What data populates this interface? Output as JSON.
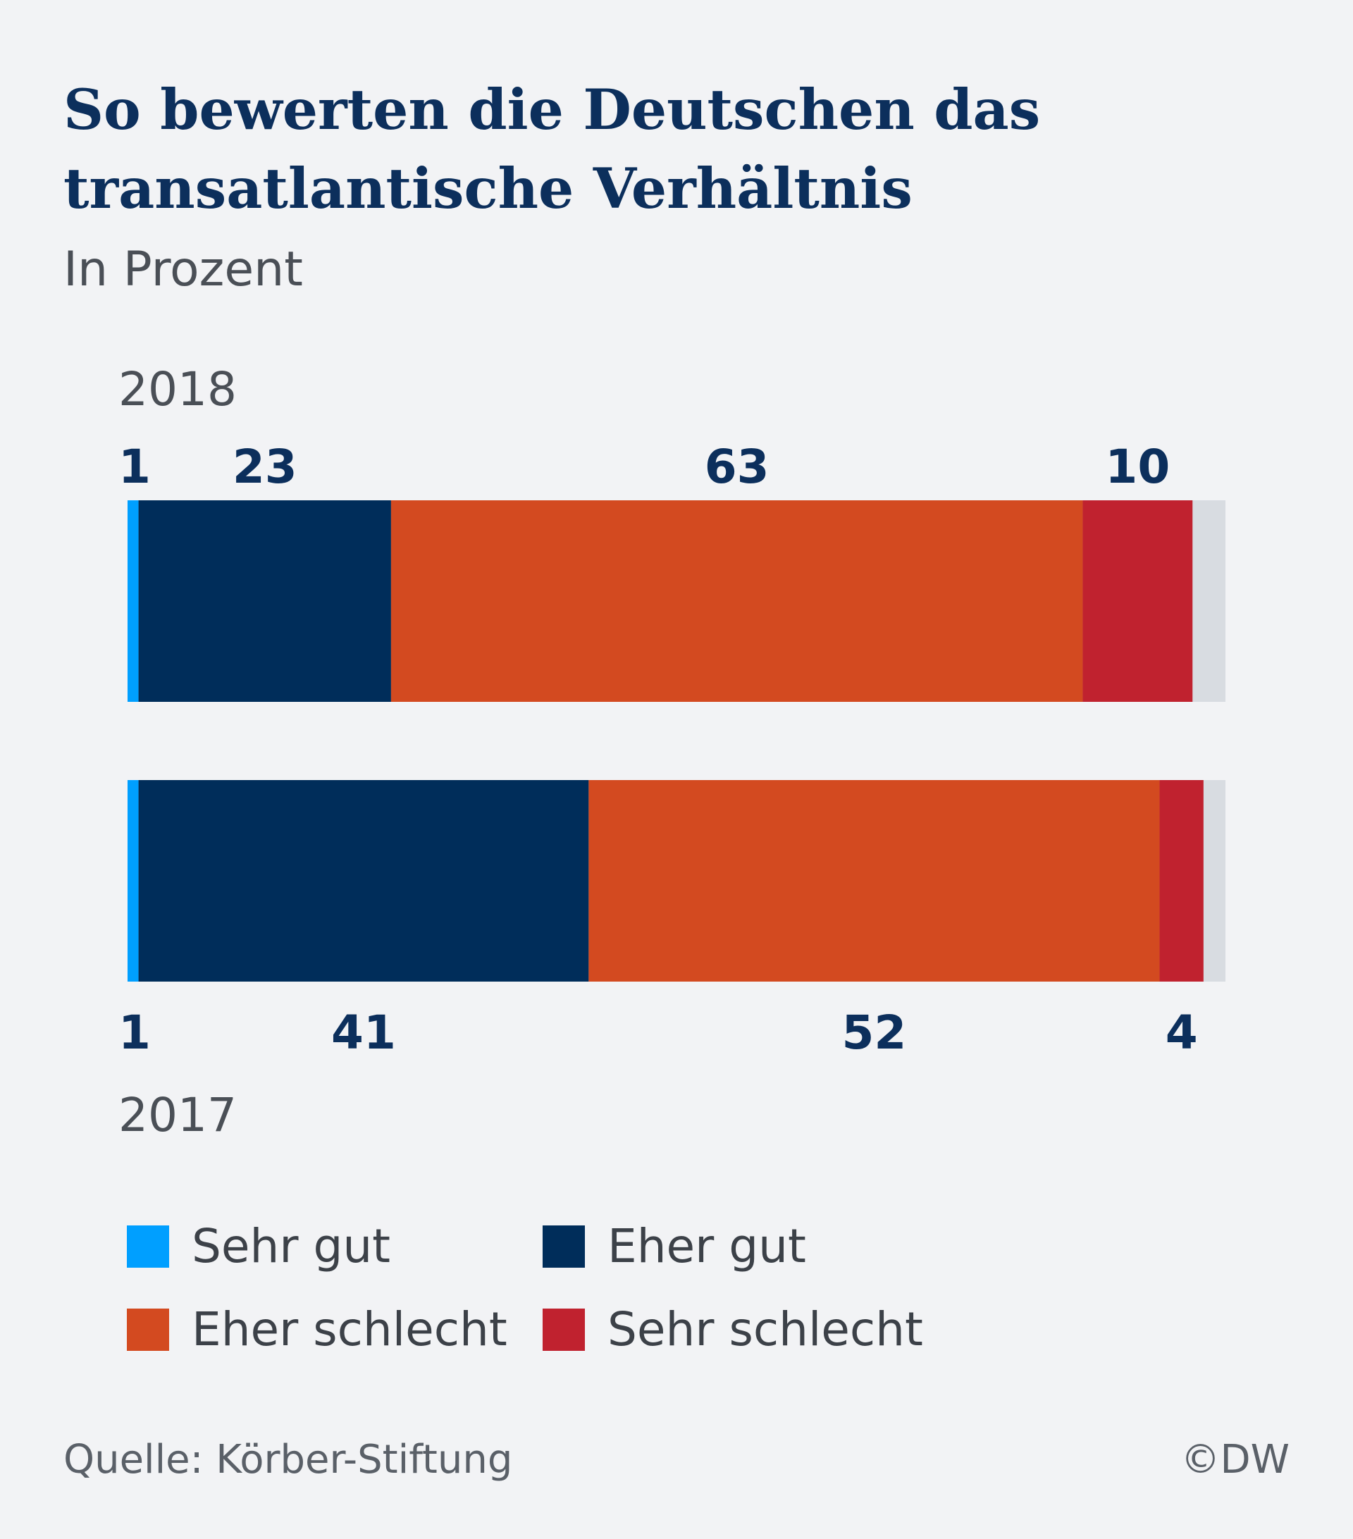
{
  "title": "So bewerten die Deutschen das transatlantische Verhältnis",
  "subtitle": "In Prozent",
  "source": "Quelle: Körber-Stiftung",
  "credit": "©DW",
  "colors": {
    "sehr_gut": "#009fff",
    "eher_gut": "#002d5a",
    "eher_schlecht": "#d34a20",
    "sehr_schlecht": "#c0222f",
    "remainder": "#d8dce1",
    "label": "#0c2f5c",
    "year": "#4a4f56"
  },
  "chart_data": {
    "type": "bar",
    "orientation": "horizontal",
    "stacked": true,
    "categories": [
      "2018",
      "2017"
    ],
    "xlim": [
      0,
      100
    ],
    "grid": false,
    "legend_position": "bottom",
    "series": [
      {
        "name": "Sehr gut",
        "values": [
          1,
          1
        ],
        "labels": [
          "1",
          "1"
        ]
      },
      {
        "name": "Eher gut",
        "values": [
          23,
          41
        ],
        "labels": [
          "23",
          "41"
        ]
      },
      {
        "name": "Eher schlecht",
        "values": [
          63,
          52
        ],
        "labels": [
          "63",
          "52"
        ]
      },
      {
        "name": "Sehr schlecht",
        "values": [
          10,
          4
        ],
        "labels": [
          "10",
          "4"
        ]
      }
    ]
  }
}
